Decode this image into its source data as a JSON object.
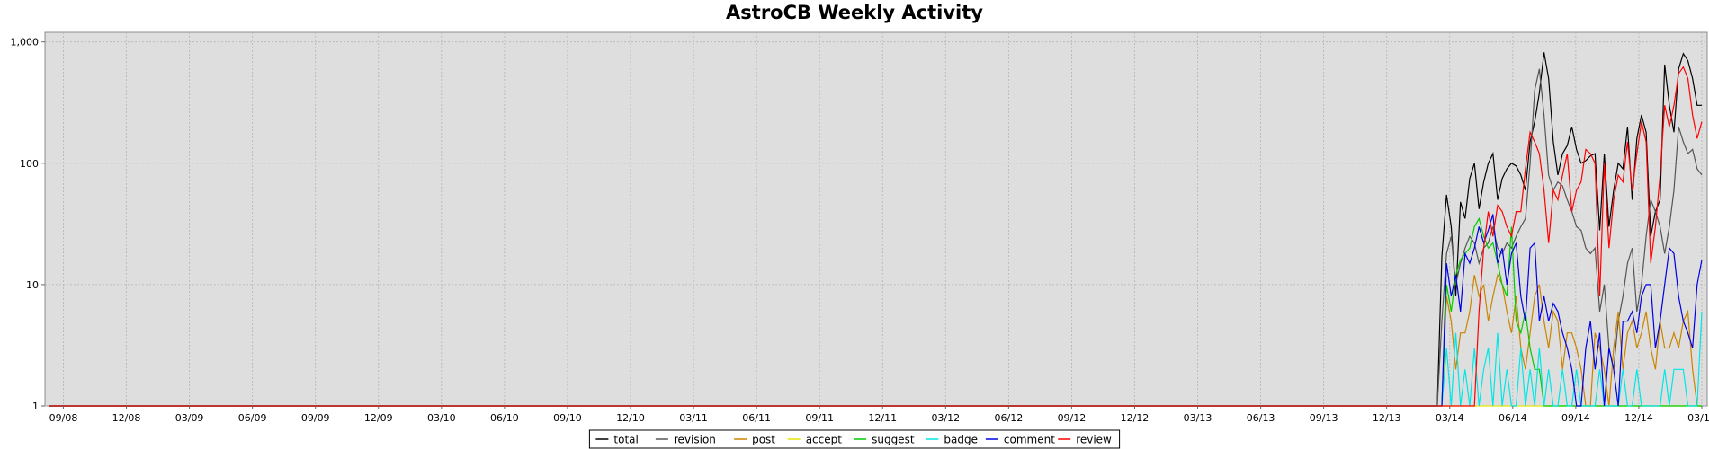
{
  "chart_data": {
    "type": "line",
    "title": "AstroCB Weekly Activity",
    "xlabel": "",
    "ylabel": "",
    "yscale": "log",
    "ylim": [
      1,
      1200
    ],
    "y_ticks": [
      1,
      10,
      100,
      1000
    ],
    "y_tick_labels": [
      "1",
      "10",
      "100",
      "1,000"
    ],
    "x_ticks": [
      "09/08",
      "12/08",
      "03/09",
      "06/09",
      "09/09",
      "12/09",
      "03/10",
      "06/10",
      "09/10",
      "12/10",
      "03/11",
      "06/11",
      "09/11",
      "12/11",
      "03/12",
      "06/12",
      "09/12",
      "12/12",
      "03/13",
      "06/13",
      "09/13",
      "12/13",
      "03/14",
      "06/14",
      "09/14",
      "12/14",
      "03/15"
    ],
    "x_range_weeks": [
      0,
      356
    ],
    "grid": true,
    "legend_position": "bottom",
    "colors": {
      "plot_bg": "#dedede",
      "grid": "#b4b4b4",
      "total": "#000000",
      "revision": "#555555",
      "post": "#cc8400",
      "accept": "#e6e600",
      "suggest": "#00cc00",
      "badge": "#00e6e6",
      "comment": "#0000e6",
      "review": "#ff0000"
    },
    "active_start_week": 300,
    "series": [
      {
        "name": "total",
        "color": "#000000",
        "values": [
          17,
          55,
          30,
          8,
          48,
          35,
          75,
          100,
          42,
          70,
          100,
          120,
          50,
          75,
          90,
          100,
          95,
          80,
          60,
          150,
          220,
          380,
          820,
          500,
          150,
          80,
          120,
          140,
          200,
          130,
          100,
          105,
          115,
          120,
          28,
          120,
          30,
          60,
          100,
          90,
          200,
          50,
          160,
          250,
          180,
          25,
          40,
          50,
          650,
          300,
          180,
          600,
          800,
          700,
          500,
          300,
          300
        ]
      },
      {
        "name": "revision",
        "color": "#555555",
        "values": [
          5,
          18,
          25,
          10,
          15,
          20,
          25,
          22,
          15,
          20,
          22,
          30,
          20,
          18,
          22,
          20,
          25,
          30,
          35,
          100,
          400,
          600,
          250,
          80,
          60,
          70,
          65,
          50,
          40,
          30,
          28,
          20,
          18,
          20,
          6,
          10,
          3,
          2,
          5,
          8,
          15,
          20,
          6,
          10,
          25,
          50,
          40,
          30,
          18,
          30,
          60,
          200,
          150,
          120,
          130,
          90,
          80
        ]
      },
      {
        "name": "post",
        "color": "#cc8400",
        "values": [
          1,
          8,
          5,
          2,
          4,
          4,
          6,
          12,
          8,
          10,
          5,
          8,
          12,
          10,
          6,
          4,
          8,
          3,
          2,
          4,
          8,
          10,
          5,
          3,
          6,
          5,
          2,
          4,
          4,
          3,
          2,
          1,
          1,
          4,
          3,
          2,
          1,
          3,
          6,
          2,
          4,
          5,
          3,
          4,
          6,
          3,
          2,
          5,
          3,
          3,
          4,
          3,
          5,
          6,
          2,
          1,
          1
        ]
      },
      {
        "name": "accept",
        "color": "#e6e600",
        "values": [
          1,
          1,
          1,
          1,
          1,
          1,
          1,
          1,
          1,
          1,
          1,
          1,
          1,
          1,
          1,
          1,
          1,
          1,
          1,
          1,
          1,
          1,
          1,
          1,
          1,
          1,
          1,
          1,
          1,
          1,
          1,
          1,
          1,
          1,
          1,
          1,
          1,
          1,
          1,
          1,
          1,
          1,
          1,
          1,
          1,
          1,
          1,
          1,
          1,
          1,
          1,
          1,
          1,
          1,
          1,
          1,
          1
        ]
      },
      {
        "name": "suggest",
        "color": "#00cc00",
        "values": [
          1,
          10,
          6,
          12,
          16,
          18,
          20,
          30,
          35,
          25,
          20,
          22,
          15,
          10,
          8,
          30,
          5,
          4,
          6,
          3,
          2,
          2,
          1,
          1,
          1,
          1,
          1,
          1,
          1,
          1,
          1,
          1,
          1,
          1,
          1,
          1,
          1,
          1,
          1,
          1,
          1,
          1,
          1,
          1,
          1,
          1,
          1,
          1,
          1,
          1,
          1,
          1,
          1,
          1,
          1,
          1,
          1
        ]
      },
      {
        "name": "badge",
        "color": "#00e6e6",
        "values": [
          1,
          3,
          1,
          4,
          1,
          2,
          1,
          3,
          1,
          2,
          3,
          1,
          4,
          1,
          2,
          1,
          1,
          3,
          1,
          2,
          1,
          3,
          1,
          2,
          1,
          1,
          2,
          1,
          1,
          2,
          1,
          1,
          1,
          1,
          2,
          1,
          1,
          1,
          1,
          2,
          1,
          1,
          2,
          1,
          1,
          1,
          1,
          1,
          2,
          1,
          2,
          2,
          2,
          1,
          1,
          1,
          6
        ]
      },
      {
        "name": "comment",
        "color": "#0000e6",
        "values": [
          1,
          15,
          8,
          12,
          6,
          18,
          15,
          20,
          30,
          22,
          28,
          38,
          15,
          20,
          10,
          18,
          22,
          8,
          5,
          20,
          22,
          5,
          8,
          5,
          7,
          6,
          4,
          3,
          2,
          1,
          1,
          3,
          5,
          2,
          4,
          1,
          3,
          2,
          1,
          5,
          5,
          6,
          4,
          8,
          10,
          10,
          3,
          5,
          10,
          20,
          18,
          8,
          5,
          4,
          3,
          10,
          16
        ]
      },
      {
        "name": "review",
        "color": "#ff0000",
        "values": [
          1,
          1,
          1,
          1,
          1,
          1,
          1,
          1,
          6,
          20,
          40,
          25,
          45,
          40,
          30,
          25,
          40,
          40,
          90,
          180,
          150,
          120,
          60,
          22,
          60,
          50,
          80,
          120,
          40,
          60,
          70,
          130,
          120,
          100,
          8,
          100,
          20,
          50,
          80,
          70,
          150,
          60,
          120,
          220,
          150,
          15,
          30,
          80,
          300,
          200,
          300,
          550,
          620,
          500,
          250,
          160,
          220
        ]
      }
    ]
  }
}
